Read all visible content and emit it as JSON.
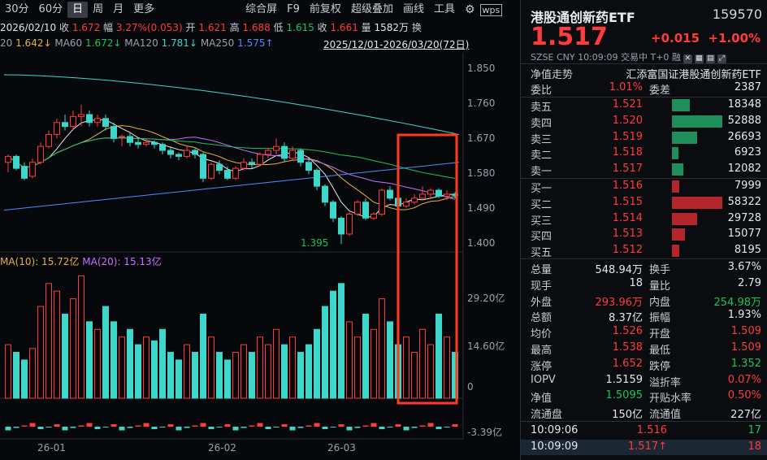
{
  "toolbar": {
    "items": [
      "30分",
      "60分",
      "日",
      "周",
      "月",
      "更多"
    ],
    "right_items": [
      "综合屏",
      "F9",
      "前复权",
      "超级叠加",
      "画线",
      "工具"
    ],
    "gear_icon": "gear-icon",
    "more_icon": "wps-icon"
  },
  "info": {
    "date": "2026/02/10",
    "close_label": "收",
    "close": "1.672",
    "range_label": "幅",
    "range": "3.27%(0.053)",
    "open_label": "开",
    "open": "1.621",
    "high_label": "高",
    "high": "1.688",
    "low_label": "低",
    "low": "1.615",
    "last_label": "收",
    "last": "1.661",
    "vol_label": "量",
    "vol": "1582万",
    "extra": "换"
  },
  "ma": {
    "ma20_label": "20",
    "ma20": "1.642↓",
    "ma60_label": "MA60",
    "ma60": "1.672↓",
    "ma120_label": "MA120",
    "ma120": "1.781↓",
    "ma250_label": "MA250",
    "ma250": "1.575↑",
    "period": "2025/12/01-2026/03/20(72日)"
  },
  "price_axis": [
    "1.850",
    "1.760",
    "1.670",
    "1.580",
    "1.490",
    "1.400"
  ],
  "low_marker": "1.395",
  "vol_legend": {
    "ma10": "MA(10): 15.72亿",
    "ma20": "MA(20): 15.13亿",
    "prefix": "MA"
  },
  "vol_axis": [
    "29.20亿",
    "14.60亿",
    "0"
  ],
  "flow_axis": "-3.39亿",
  "date_axis": [
    "26-01",
    "26-02",
    "26-03"
  ],
  "chart_data": {
    "type": "candlestick",
    "price_ticks": [
      1.85,
      1.76,
      1.67,
      1.58,
      1.49,
      1.4
    ],
    "ylim": [
      1.375,
      1.875
    ],
    "candles": [
      [
        1.6,
        1.615,
        1.575,
        1.62
      ],
      [
        1.615,
        1.585,
        1.58,
        1.62
      ],
      [
        1.59,
        1.56,
        1.555,
        1.6
      ],
      [
        1.565,
        1.6,
        1.56,
        1.61
      ],
      [
        1.6,
        1.64,
        1.595,
        1.65
      ],
      [
        1.64,
        1.67,
        1.635,
        1.68
      ],
      [
        1.67,
        1.7,
        1.66,
        1.71
      ],
      [
        1.7,
        1.69,
        1.68,
        1.72
      ],
      [
        1.69,
        1.715,
        1.68,
        1.73
      ],
      [
        1.715,
        1.72,
        1.69,
        1.745
      ],
      [
        1.72,
        1.7,
        1.69,
        1.73
      ],
      [
        1.7,
        1.71,
        1.69,
        1.72
      ],
      [
        1.71,
        1.69,
        1.68,
        1.72
      ],
      [
        1.69,
        1.66,
        1.65,
        1.7
      ],
      [
        1.665,
        1.665,
        1.64,
        1.67
      ],
      [
        1.665,
        1.65,
        1.64,
        1.675
      ],
      [
        1.65,
        1.645,
        1.635,
        1.66
      ],
      [
        1.645,
        1.65,
        1.64,
        1.66
      ],
      [
        1.65,
        1.645,
        1.635,
        1.655
      ],
      [
        1.645,
        1.63,
        1.62,
        1.65
      ],
      [
        1.63,
        1.62,
        1.61,
        1.64
      ],
      [
        1.62,
        1.615,
        1.605,
        1.625
      ],
      [
        1.615,
        1.63,
        1.61,
        1.64
      ],
      [
        1.63,
        1.62,
        1.61,
        1.635
      ],
      [
        1.62,
        1.56,
        1.55,
        1.625
      ],
      [
        1.56,
        1.595,
        1.555,
        1.6
      ],
      [
        1.595,
        1.58,
        1.57,
        1.605
      ],
      [
        1.58,
        1.56,
        1.555,
        1.59
      ],
      [
        1.56,
        1.585,
        1.555,
        1.59
      ],
      [
        1.585,
        1.6,
        1.58,
        1.61
      ],
      [
        1.6,
        1.595,
        1.585,
        1.61
      ],
      [
        1.595,
        1.62,
        1.59,
        1.625
      ],
      [
        1.62,
        1.63,
        1.61,
        1.635
      ],
      [
        1.63,
        1.64,
        1.62,
        1.66
      ],
      [
        1.64,
        1.61,
        1.6,
        1.65
      ],
      [
        1.61,
        1.63,
        1.605,
        1.64
      ],
      [
        1.63,
        1.6,
        1.59,
        1.635
      ],
      [
        1.6,
        1.58,
        1.57,
        1.61
      ],
      [
        1.58,
        1.54,
        1.53,
        1.585
      ],
      [
        1.54,
        1.5,
        1.49,
        1.545
      ],
      [
        1.5,
        1.46,
        1.45,
        1.505
      ],
      [
        1.46,
        1.42,
        1.395,
        1.465
      ],
      [
        1.42,
        1.47,
        1.415,
        1.475
      ],
      [
        1.47,
        1.5,
        1.465,
        1.505
      ],
      [
        1.5,
        1.46,
        1.455,
        1.51
      ],
      [
        1.46,
        1.47,
        1.455,
        1.475
      ],
      [
        1.47,
        1.53,
        1.465,
        1.535
      ],
      [
        1.53,
        1.51,
        1.505,
        1.54
      ],
      [
        1.51,
        1.49,
        1.48,
        1.515
      ],
      [
        1.49,
        1.5,
        1.485,
        1.51
      ],
      [
        1.5,
        1.51,
        1.495,
        1.52
      ],
      [
        1.51,
        1.52,
        1.505,
        1.54
      ],
      [
        1.52,
        1.53,
        1.51,
        1.535
      ],
      [
        1.53,
        1.515,
        1.51,
        1.535
      ],
      [
        1.515,
        1.52,
        1.505,
        1.53
      ],
      [
        1.52,
        1.517,
        1.51,
        1.525
      ]
    ],
    "volumes": [
      14,
      12,
      10,
      13,
      24,
      30,
      28,
      22,
      26,
      32,
      20,
      18,
      24,
      20,
      16,
      18,
      14,
      16,
      15,
      18,
      12,
      10,
      14,
      12,
      22,
      16,
      12,
      10,
      12,
      14,
      12,
      16,
      14,
      18,
      14,
      16,
      12,
      14,
      18,
      24,
      28,
      30,
      20,
      16,
      22,
      18,
      26,
      20,
      14,
      16,
      12,
      18,
      14,
      22,
      16,
      12
    ],
    "vol_ticks": [
      29.2,
      14.6,
      0
    ]
  },
  "quote": {
    "name": "港股通创新药ETF",
    "code": "159570",
    "price": "1.517",
    "change": "+0.015",
    "change_pct": "+1.00%",
    "meta": "SZSE  CNY  10:09:09  交易中   T+0 融",
    "nav_label": "净值走势",
    "nav_name": "汇添富国证港股通创新药ETF",
    "weibi_label": "委比",
    "weibi": "1.01%",
    "weicha_label": "委差",
    "weicha": "2387",
    "asks": [
      {
        "label": "卖五",
        "price": "1.521",
        "vol": "18348",
        "w": 0.35
      },
      {
        "label": "卖四",
        "price": "1.520",
        "vol": "52888",
        "w": 1.0
      },
      {
        "label": "卖三",
        "price": "1.519",
        "vol": "26693",
        "w": 0.5
      },
      {
        "label": "卖二",
        "price": "1.518",
        "vol": "6923",
        "w": 0.13
      },
      {
        "label": "卖一",
        "price": "1.517",
        "vol": "12082",
        "w": 0.23
      }
    ],
    "bids": [
      {
        "label": "买一",
        "price": "1.516",
        "vol": "7999",
        "w": 0.15
      },
      {
        "label": "买二",
        "price": "1.515",
        "vol": "58322",
        "w": 1.0
      },
      {
        "label": "买三",
        "price": "1.514",
        "vol": "29728",
        "w": 0.5
      },
      {
        "label": "买四",
        "price": "1.513",
        "vol": "15077",
        "w": 0.26
      },
      {
        "label": "买五",
        "price": "1.512",
        "vol": "8195",
        "w": 0.14
      }
    ],
    "stats": [
      {
        "l1": "总量",
        "v1": "548.94万",
        "c1": "white",
        "l2": "换手",
        "v2": "3.67%",
        "c2": "white"
      },
      {
        "l1": "现手",
        "v1": "18",
        "c1": "white",
        "l2": "量比",
        "v2": "2.79",
        "c2": "white"
      },
      {
        "l1": "外盘",
        "v1": "293.96万",
        "c1": "red",
        "l2": "内盘",
        "v2": "254.98万",
        "c2": "green"
      },
      {
        "l1": "总额",
        "v1": "8.37亿",
        "c1": "white",
        "l2": "振幅",
        "v2": "1.93%",
        "c2": "white"
      },
      {
        "l1": "均价",
        "v1": "1.526",
        "c1": "red",
        "l2": "开盘",
        "v2": "1.509",
        "c2": "red"
      },
      {
        "l1": "最高",
        "v1": "1.538",
        "c1": "red",
        "l2": "最低",
        "v2": "1.509",
        "c2": "red"
      },
      {
        "l1": "涨停",
        "v1": "1.652",
        "c1": "red",
        "l2": "跌停",
        "v2": "1.352",
        "c2": "green"
      },
      {
        "l1": "IOPV",
        "v1": "1.5159",
        "c1": "white",
        "l2": "溢折率",
        "v2": "0.07%",
        "c2": "red"
      },
      {
        "l1": "净值",
        "v1": "1.5095",
        "c1": "green",
        "l2": "开贴水率",
        "v2": "0.50%",
        "c2": "red"
      },
      {
        "l1": "流通盘",
        "v1": "150亿",
        "c1": "white",
        "l2": "流通值",
        "v2": "227亿",
        "c2": "white"
      }
    ],
    "ticks": [
      {
        "time": "10:09:06",
        "price": "1.516",
        "arrow": "",
        "vol": "17",
        "vc": "green"
      },
      {
        "time": "10:09:09",
        "price": "1.517",
        "arrow": "↑",
        "vol": "18",
        "vc": "red"
      }
    ]
  },
  "colors": {
    "up": "#ff3b3b",
    "down": "#3dd6c8",
    "highlight": "#ff3b1f"
  }
}
